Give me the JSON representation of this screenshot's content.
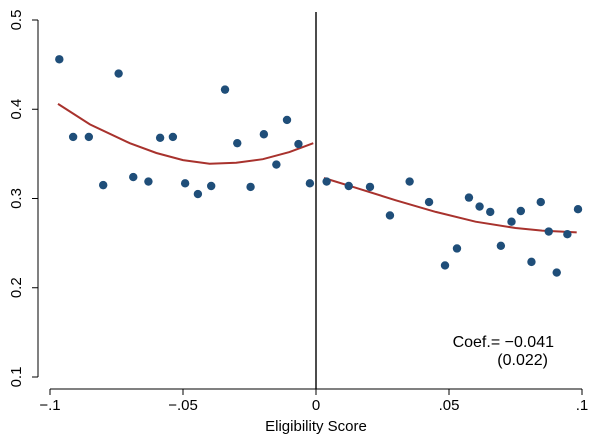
{
  "chart_data": {
    "type": "scatter",
    "xlabel": "Eligibility Score",
    "ylabel": "",
    "xlim": [
      -0.1,
      0.1
    ],
    "ylim": [
      0.1,
      0.5
    ],
    "xticks": [
      {
        "value": -0.1,
        "label": "−.1"
      },
      {
        "value": -0.05,
        "label": "−.05"
      },
      {
        "value": 0,
        "label": "0"
      },
      {
        "value": 0.05,
        "label": ".05"
      },
      {
        "value": 0.1,
        "label": ".1"
      }
    ],
    "yticks": [
      {
        "value": 0.1,
        "label": "0.1"
      },
      {
        "value": 0.2,
        "label": "0.2"
      },
      {
        "value": 0.3,
        "label": "0.3"
      },
      {
        "value": 0.4,
        "label": "0.4"
      },
      {
        "value": 0.5,
        "label": "0.5"
      }
    ],
    "cutoff": 0,
    "grid": false,
    "legend": "none",
    "point_color": "#1f4e79",
    "fit_color": "#a8322d",
    "points": [
      {
        "x": -0.0965,
        "y": 0.456
      },
      {
        "x": -0.0913,
        "y": 0.369
      },
      {
        "x": -0.0854,
        "y": 0.369
      },
      {
        "x": -0.08,
        "y": 0.315
      },
      {
        "x": -0.0742,
        "y": 0.44
      },
      {
        "x": -0.0687,
        "y": 0.324
      },
      {
        "x": -0.063,
        "y": 0.319
      },
      {
        "x": -0.0586,
        "y": 0.368
      },
      {
        "x": -0.0538,
        "y": 0.369
      },
      {
        "x": -0.0492,
        "y": 0.317
      },
      {
        "x": -0.0444,
        "y": 0.305
      },
      {
        "x": -0.0394,
        "y": 0.314
      },
      {
        "x": -0.0342,
        "y": 0.422
      },
      {
        "x": -0.0296,
        "y": 0.362
      },
      {
        "x": -0.0246,
        "y": 0.313
      },
      {
        "x": -0.0196,
        "y": 0.372
      },
      {
        "x": -0.0149,
        "y": 0.338
      },
      {
        "x": -0.0109,
        "y": 0.388
      },
      {
        "x": -0.0066,
        "y": 0.361
      },
      {
        "x": -0.0023,
        "y": 0.317
      },
      {
        "x": 0.004,
        "y": 0.319
      },
      {
        "x": 0.0123,
        "y": 0.314
      },
      {
        "x": 0.0203,
        "y": 0.313
      },
      {
        "x": 0.0278,
        "y": 0.281
      },
      {
        "x": 0.0352,
        "y": 0.319
      },
      {
        "x": 0.0425,
        "y": 0.296
      },
      {
        "x": 0.0485,
        "y": 0.225
      },
      {
        "x": 0.053,
        "y": 0.244
      },
      {
        "x": 0.0575,
        "y": 0.301
      },
      {
        "x": 0.0615,
        "y": 0.291
      },
      {
        "x": 0.0655,
        "y": 0.285
      },
      {
        "x": 0.0695,
        "y": 0.247
      },
      {
        "x": 0.0735,
        "y": 0.274
      },
      {
        "x": 0.077,
        "y": 0.286
      },
      {
        "x": 0.081,
        "y": 0.229
      },
      {
        "x": 0.0845,
        "y": 0.296
      },
      {
        "x": 0.0875,
        "y": 0.263
      },
      {
        "x": 0.0905,
        "y": 0.217
      },
      {
        "x": 0.0945,
        "y": 0.26
      },
      {
        "x": 0.0985,
        "y": 0.288
      }
    ],
    "fits": [
      {
        "side": "left",
        "points": [
          {
            "x": -0.097,
            "y": 0.406
          },
          {
            "x": -0.085,
            "y": 0.383
          },
          {
            "x": -0.07,
            "y": 0.362
          },
          {
            "x": -0.06,
            "y": 0.351
          },
          {
            "x": -0.05,
            "y": 0.343
          },
          {
            "x": -0.04,
            "y": 0.339
          },
          {
            "x": -0.03,
            "y": 0.34
          },
          {
            "x": -0.02,
            "y": 0.344
          },
          {
            "x": -0.01,
            "y": 0.352
          },
          {
            "x": -0.001,
            "y": 0.362
          }
        ]
      },
      {
        "side": "right",
        "points": [
          {
            "x": 0.003,
            "y": 0.323
          },
          {
            "x": 0.015,
            "y": 0.312
          },
          {
            "x": 0.03,
            "y": 0.298
          },
          {
            "x": 0.045,
            "y": 0.285
          },
          {
            "x": 0.06,
            "y": 0.274
          },
          {
            "x": 0.075,
            "y": 0.267
          },
          {
            "x": 0.085,
            "y": 0.264
          },
          {
            "x": 0.098,
            "y": 0.262
          }
        ]
      }
    ],
    "annotation": {
      "line1": "Coef.= −0.041",
      "line2": "(0.022)"
    }
  }
}
